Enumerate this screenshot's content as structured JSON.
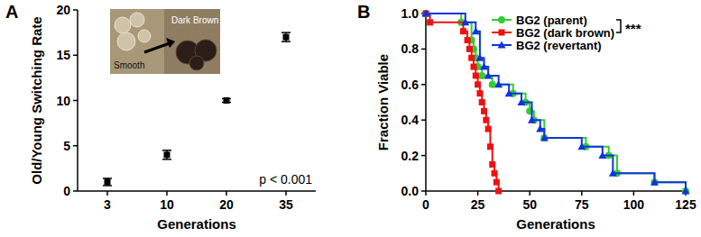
{
  "chart_data": [
    {
      "type": "scatter",
      "title": "A",
      "categories": [
        "3",
        "10",
        "20",
        "35"
      ],
      "values": [
        1,
        4,
        10,
        17
      ],
      "errors": [
        0.4,
        0.5,
        0.2,
        0.5
      ],
      "color": "#000000",
      "marker": "square",
      "x_label": "Generations",
      "y_label": "Old/Young Switching Rate",
      "ylim": [
        0,
        20
      ],
      "yticks": [
        0,
        5,
        10,
        15,
        20
      ],
      "annotations": [
        "p < 0.001",
        "Smooth",
        "Dark Brown"
      ]
    },
    {
      "type": "line",
      "title": "B",
      "line_style": "step",
      "legend": "top-right",
      "x_label": "Generations",
      "y_label": "Fraction Viable",
      "xlim": [
        0,
        125
      ],
      "xticks": [
        0,
        25,
        50,
        75,
        100,
        125
      ],
      "ylim": [
        0,
        1
      ],
      "yticks": [
        {
          "value": 0,
          "label": "0.0"
        },
        {
          "value": 0.2,
          "label": "0.2"
        },
        {
          "value": 0.4,
          "label": "0.4"
        },
        {
          "value": 0.6,
          "label": "0.6"
        },
        {
          "value": 0.8,
          "label": "0.8"
        },
        {
          "value": 1,
          "label": "1.0"
        }
      ],
      "annotations": [
        "***"
      ],
      "series": [
        {
          "name": "BG2 (parent)",
          "color": "#33cc33",
          "marker": "circle",
          "x": [
            0,
            17,
            22,
            23,
            24,
            25,
            27,
            32,
            42,
            48,
            50,
            52,
            57,
            77,
            88,
            92,
            110,
            125
          ],
          "values": [
            1,
            0.95,
            0.85,
            0.8,
            0.75,
            0.7,
            0.65,
            0.6,
            0.55,
            0.5,
            0.45,
            0.4,
            0.3,
            0.25,
            0.2,
            0.1,
            0.05,
            0
          ]
        },
        {
          "name": "BG2 (dark brown)",
          "color": "#ee1111",
          "marker": "square",
          "x": [
            0,
            2,
            18,
            20,
            21,
            22,
            23,
            24,
            25,
            26,
            27,
            28,
            29,
            30,
            31,
            32,
            33,
            34,
            35
          ],
          "values": [
            1,
            0.95,
            0.9,
            0.85,
            0.8,
            0.75,
            0.7,
            0.65,
            0.6,
            0.55,
            0.5,
            0.45,
            0.4,
            0.35,
            0.25,
            0.15,
            0.1,
            0.05,
            0
          ]
        },
        {
          "name": "BG2 (revertant)",
          "color": "#1133dd",
          "marker": "triangle",
          "x": [
            0,
            19,
            24,
            26,
            28,
            30,
            35,
            40,
            46,
            51,
            55,
            57,
            75,
            85,
            90,
            110,
            125
          ],
          "values": [
            1,
            0.95,
            0.9,
            0.75,
            0.7,
            0.65,
            0.6,
            0.55,
            0.5,
            0.4,
            0.35,
            0.3,
            0.25,
            0.2,
            0.1,
            0.05,
            0
          ]
        }
      ]
    }
  ]
}
